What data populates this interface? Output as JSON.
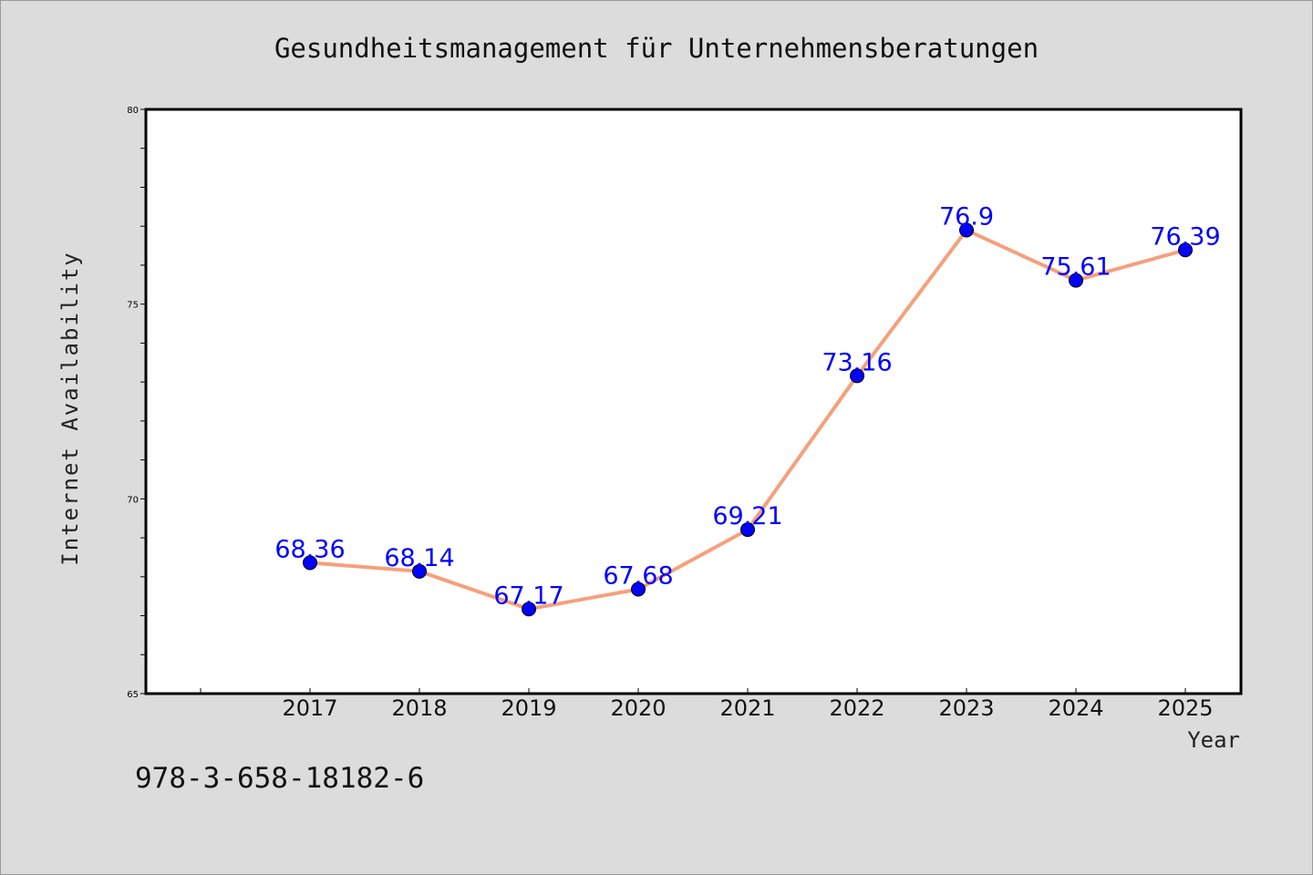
{
  "chart_data": {
    "type": "line",
    "title": "Gesundheitsmanagement für Unternehmensberatungen",
    "xlabel": "Year",
    "ylabel": "Internet Availability",
    "categories": [
      "2017",
      "2018",
      "2019",
      "2020",
      "2021",
      "2022",
      "2023",
      "2024",
      "2025"
    ],
    "series": [
      {
        "values": [
          68.36,
          68.14,
          67.17,
          67.68,
          69.21,
          73.16,
          76.9,
          75.61,
          76.39
        ],
        "labels": [
          "68.36",
          "68.14",
          "67.17",
          "67.68",
          "69.21",
          "73.16",
          "76.9",
          "75.61",
          "76.39"
        ],
        "line_color": "#f5a07c",
        "marker_color": "#0000ff"
      }
    ],
    "ylim": [
      65,
      80
    ],
    "yticks": [
      "65",
      "70",
      "75",
      "80"
    ],
    "grid": false,
    "legend": "none"
  },
  "footer": {
    "code": "978-3-658-18182-6"
  }
}
